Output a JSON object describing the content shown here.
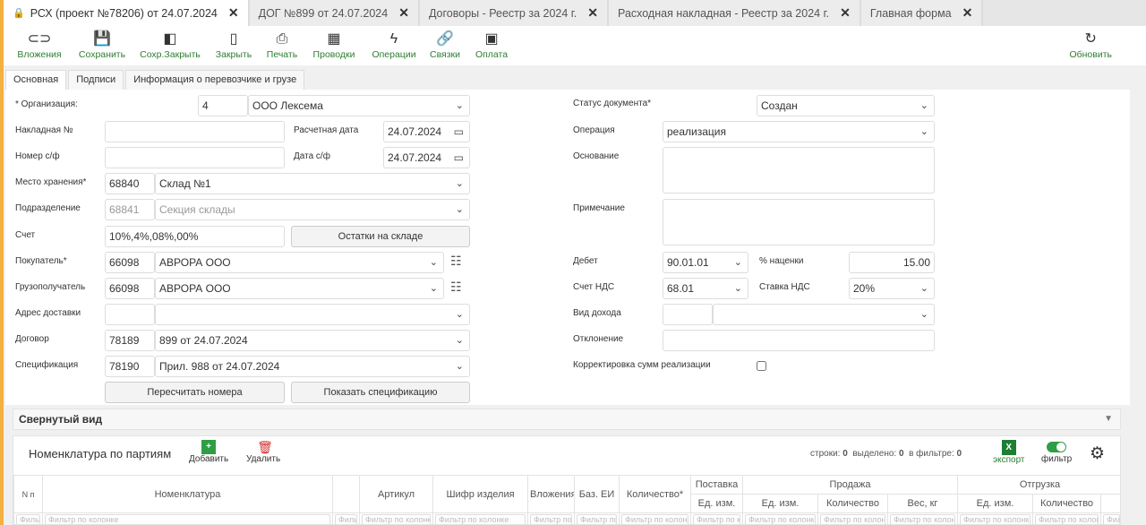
{
  "tabs": [
    {
      "label": "РСХ (проект №78206) от 24.07.2024",
      "active": true,
      "icon": "lock-icon"
    },
    {
      "label": "ДОГ №899 от 24.07.2024"
    },
    {
      "label": "Договоры - Реестр за 2024 г."
    },
    {
      "label": "Расходная накладная - Реестр за 2024 г."
    },
    {
      "label": "Главная форма"
    }
  ],
  "toolbar": {
    "items": [
      "Вложения",
      "Сохранить",
      "Сохр.Закрыть",
      "Закрыть",
      "Печать",
      "Проводки",
      "Операции",
      "Связки",
      "Оплата"
    ],
    "refresh": "Обновить"
  },
  "form_tabs": [
    "Основная",
    "Подписи",
    "Информация о перевозчике и грузе"
  ],
  "form": {
    "org_label": "* Организация:",
    "org_code": "4",
    "org_name": "ООО Лексема",
    "invoice_no_label": "Накладная №",
    "calc_date_label": "Расчетная дата",
    "calc_date": "24.07.2024",
    "sf_no_label": "Номер с/ф",
    "sf_date_label": "Дата с/ф",
    "sf_date": "24.07.2024",
    "storage_label": "Место хранения*",
    "storage_code": "68840",
    "storage_name": "Склад №1",
    "division_label": "Подразделение",
    "division_code": "68841",
    "division_name": "Секция склады",
    "account_label": "Счет",
    "account": "10%,4%,08%,00%",
    "stock_button": "Остатки на складе",
    "buyer_label": "Покупатель*",
    "buyer_code": "66098",
    "buyer_name": "АВРОРА ООО",
    "consignee_label": "Грузополучатель",
    "consignee_code": "66098",
    "consignee_name": "АВРОРА ООО",
    "address_label": "Адрес доставки",
    "contract_label": "Договор",
    "contract_code": "78189",
    "contract_name": "899 от 24.07.2024",
    "spec_label": "Спецификация",
    "spec_code": "78190",
    "spec_name": "Прил. 988 от 24.07.2024",
    "renumber_button": "Пересчитать номера",
    "show_spec_button": "Показать спецификацию",
    "status_label": "Статус документа*",
    "status": "Создан",
    "operation_label": "Операция",
    "operation": "реализация",
    "basis_label": "Основание",
    "note_label": "Примечание",
    "debit_label": "Дебет",
    "debit": "90.01.01",
    "markup_label": "% наценки",
    "markup": "15.00",
    "vat_account_label": "Счет НДС",
    "vat_account": "68.01",
    "vat_rate_label": "Ставка НДС",
    "vat_rate": "20%",
    "income_label": "Вид дохода",
    "deviation_label": "Отклонение",
    "correction_label": "Корректировка сумм реализации",
    "correction_checked": false
  },
  "collapsed_label": "Свернутый вид",
  "grid": {
    "title": "Номенклатура по партиям",
    "add": "Добавить",
    "delete": "Удалить",
    "rows_label": "строки:",
    "rows": "0",
    "selected_label": "выделено:",
    "selected": "0",
    "filtered_label": "в фильтре:",
    "filtered": "0",
    "export": "экспорт",
    "filter": "фильтр",
    "filter_on": true,
    "groups": {
      "supply": "Поставка",
      "sale": "Продажа",
      "shipment": "Отгрузка"
    },
    "columns": [
      "N п",
      "Номенклатура",
      "",
      "Артикул",
      "Шифр изделия",
      "Вложения",
      "Баз. ЕИ",
      "Количество*",
      "Ед. изм.",
      "Ед. изм.",
      "Количество",
      "Вес, кг",
      "Ед. изм.",
      "Количество",
      ""
    ],
    "filter_placeholder": "Фильтр по колонке"
  },
  "colors": {
    "accent_green": "#2e7d32",
    "delete_red": "#d32f2f",
    "tab_marker": "#f5b041"
  }
}
